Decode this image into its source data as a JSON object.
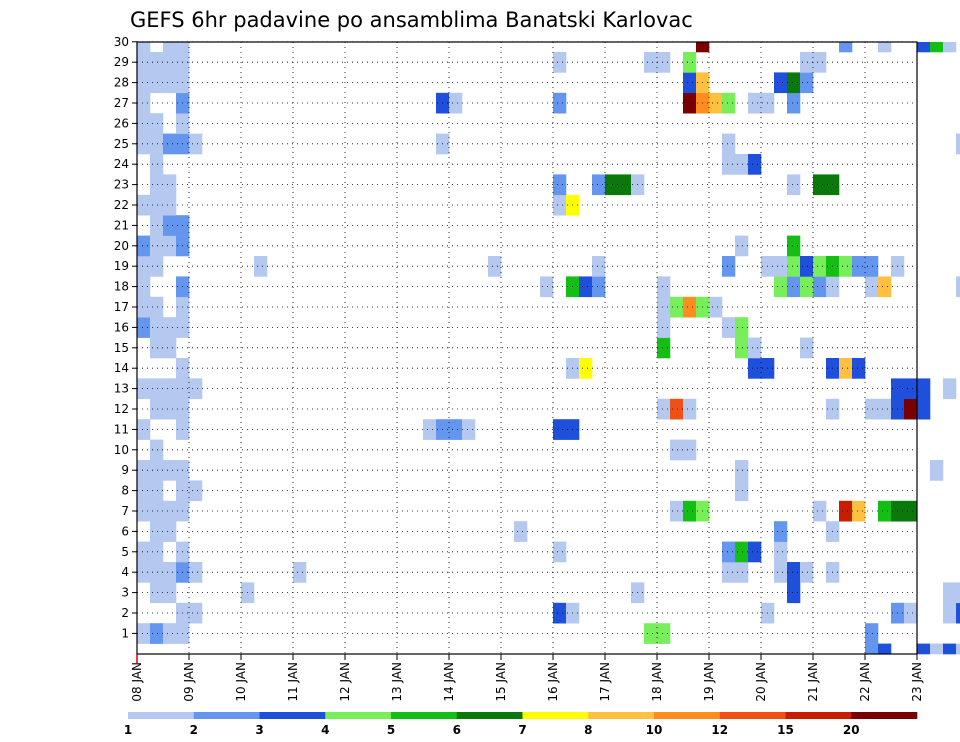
{
  "chart_data": {
    "type": "heatmap",
    "title": "GEFS 6hr padavine po ansamblima Banatski Karlovac",
    "xlabel": "",
    "ylabel": "",
    "x_tick_labels": [
      "08 JAN",
      "09 JAN",
      "10 JAN",
      "11 JAN",
      "12 JAN",
      "13 JAN",
      "14 JAN",
      "15 JAN",
      "16 JAN",
      "17 JAN",
      "18 JAN",
      "19 JAN",
      "20 JAN",
      "21 JAN",
      "22 JAN",
      "23 JAN"
    ],
    "y_tick_labels": [
      "1",
      "2",
      "3",
      "4",
      "5",
      "6",
      "7",
      "8",
      "9",
      "10",
      "11",
      "12",
      "13",
      "14",
      "15",
      "16",
      "17",
      "18",
      "19",
      "20",
      "21",
      "22",
      "23",
      "24",
      "25",
      "26",
      "27",
      "28",
      "29",
      "30"
    ],
    "x_range_days": [
      0,
      15
    ],
    "steps_per_day": 4,
    "members_range": [
      0,
      30
    ],
    "grid": true,
    "colorbar": {
      "placement": "bottom",
      "levels": [
        "1",
        "2",
        "3",
        "4",
        "5",
        "6",
        "7",
        "8",
        "10",
        "12",
        "15",
        "20"
      ],
      "colors": [
        "#b4c8f0",
        "#6496f0",
        "#1e50dc",
        "#78ee5a",
        "#14be14",
        "#0a780a",
        "#ffff00",
        "#ffc040",
        "#ff8c1e",
        "#f05014",
        "#c81e00",
        "#780000"
      ]
    },
    "cells": [
      [
        0,
        0,
        1
      ],
      [
        0,
        3,
        1
      ],
      [
        0,
        4,
        1
      ],
      [
        0,
        6,
        1
      ],
      [
        0,
        7,
        1
      ],
      [
        0,
        8,
        1
      ],
      [
        0,
        10,
        1
      ],
      [
        0,
        12,
        1
      ],
      [
        0,
        15,
        2
      ],
      [
        0,
        16,
        1
      ],
      [
        0,
        17,
        1
      ],
      [
        0,
        18,
        1
      ],
      [
        0,
        19,
        2
      ],
      [
        0,
        21,
        1
      ],
      [
        0,
        24,
        1
      ],
      [
        0,
        25,
        1
      ],
      [
        0,
        26,
        1
      ],
      [
        0,
        27,
        1
      ],
      [
        0,
        28,
        1
      ],
      [
        0,
        29,
        1
      ],
      [
        1,
        0,
        2
      ],
      [
        1,
        2,
        1
      ],
      [
        1,
        3,
        1
      ],
      [
        1,
        4,
        1
      ],
      [
        1,
        5,
        1
      ],
      [
        1,
        6,
        1
      ],
      [
        1,
        7,
        1
      ],
      [
        1,
        8,
        1
      ],
      [
        1,
        9,
        1
      ],
      [
        1,
        11,
        1
      ],
      [
        1,
        12,
        1
      ],
      [
        1,
        14,
        1
      ],
      [
        1,
        15,
        1
      ],
      [
        1,
        16,
        1
      ],
      [
        1,
        18,
        1
      ],
      [
        1,
        19,
        1
      ],
      [
        1,
        20,
        1
      ],
      [
        1,
        21,
        1
      ],
      [
        1,
        22,
        1
      ],
      [
        1,
        23,
        1
      ],
      [
        1,
        24,
        1
      ],
      [
        1,
        25,
        1
      ],
      [
        1,
        27,
        1
      ],
      [
        1,
        28,
        1
      ],
      [
        2,
        0,
        1
      ],
      [
        2,
        2,
        1
      ],
      [
        2,
        3,
        1
      ],
      [
        2,
        5,
        1
      ],
      [
        2,
        6,
        1
      ],
      [
        2,
        8,
        1
      ],
      [
        2,
        11,
        1
      ],
      [
        2,
        12,
        1
      ],
      [
        2,
        14,
        1
      ],
      [
        2,
        15,
        1
      ],
      [
        2,
        19,
        1
      ],
      [
        2,
        20,
        2
      ],
      [
        2,
        21,
        1
      ],
      [
        2,
        22,
        1
      ],
      [
        2,
        24,
        2
      ],
      [
        2,
        27,
        1
      ],
      [
        2,
        28,
        1
      ],
      [
        2,
        29,
        1
      ],
      [
        3,
        0,
        1
      ],
      [
        3,
        1,
        1
      ],
      [
        3,
        3,
        2
      ],
      [
        3,
        4,
        1
      ],
      [
        3,
        6,
        1
      ],
      [
        3,
        7,
        1
      ],
      [
        3,
        8,
        1
      ],
      [
        3,
        10,
        1
      ],
      [
        3,
        11,
        1
      ],
      [
        3,
        12,
        1
      ],
      [
        3,
        13,
        1
      ],
      [
        3,
        15,
        1
      ],
      [
        3,
        16,
        1
      ],
      [
        3,
        17,
        2
      ],
      [
        3,
        19,
        2
      ],
      [
        3,
        20,
        2
      ],
      [
        3,
        24,
        2
      ],
      [
        3,
        25,
        1
      ],
      [
        3,
        26,
        2
      ],
      [
        3,
        27,
        1
      ],
      [
        3,
        28,
        1
      ],
      [
        3,
        29,
        1
      ],
      [
        4,
        1,
        1
      ],
      [
        4,
        3,
        1
      ],
      [
        4,
        7,
        1
      ],
      [
        4,
        12,
        1
      ],
      [
        4,
        24,
        1
      ],
      [
        8,
        2,
        1
      ],
      [
        9,
        18,
        1
      ],
      [
        12,
        3,
        1
      ],
      [
        22,
        10,
        1
      ],
      [
        23,
        10,
        2
      ],
      [
        23,
        24,
        1
      ],
      [
        23,
        26,
        3
      ],
      [
        24,
        10,
        2
      ],
      [
        24,
        26,
        1
      ],
      [
        25,
        10,
        1
      ],
      [
        27,
        18,
        1
      ],
      [
        29,
        5,
        1
      ],
      [
        31,
        17,
        1
      ],
      [
        32,
        1,
        3
      ],
      [
        32,
        4,
        1
      ],
      [
        32,
        10,
        3
      ],
      [
        32,
        21,
        1
      ],
      [
        32,
        22,
        2
      ],
      [
        32,
        26,
        2
      ],
      [
        32,
        28,
        1
      ],
      [
        33,
        1,
        1
      ],
      [
        33,
        10,
        3
      ],
      [
        33,
        13,
        1
      ],
      [
        33,
        17,
        5
      ],
      [
        33,
        21,
        7
      ],
      [
        34,
        13,
        7
      ],
      [
        34,
        17,
        3
      ],
      [
        35,
        17,
        2
      ],
      [
        35,
        18,
        1
      ],
      [
        35,
        22,
        2
      ],
      [
        36,
        22,
        6
      ],
      [
        37,
        22,
        6
      ],
      [
        38,
        2,
        1
      ],
      [
        38,
        22,
        1
      ],
      [
        39,
        0,
        4
      ],
      [
        39,
        28,
        1
      ],
      [
        40,
        0,
        4
      ],
      [
        40,
        11,
        1
      ],
      [
        40,
        14,
        5
      ],
      [
        40,
        15,
        1
      ],
      [
        40,
        16,
        1
      ],
      [
        40,
        17,
        1
      ],
      [
        40,
        28,
        1
      ],
      [
        41,
        6,
        1
      ],
      [
        41,
        9,
        1
      ],
      [
        41,
        11,
        10
      ],
      [
        41,
        16,
        4
      ],
      [
        42,
        6,
        5
      ],
      [
        42,
        9,
        1
      ],
      [
        42,
        11,
        1
      ],
      [
        42,
        16,
        9
      ],
      [
        42,
        26,
        12
      ],
      [
        42,
        27,
        3
      ],
      [
        42,
        28,
        4
      ],
      [
        43,
        6,
        4
      ],
      [
        43,
        16,
        4
      ],
      [
        43,
        26,
        9
      ],
      [
        43,
        27,
        8
      ],
      [
        43,
        29,
        12
      ],
      [
        44,
        16,
        1
      ],
      [
        44,
        26,
        8
      ],
      [
        45,
        3,
        1
      ],
      [
        45,
        4,
        2
      ],
      [
        45,
        15,
        1
      ],
      [
        45,
        18,
        2
      ],
      [
        45,
        23,
        1
      ],
      [
        45,
        24,
        1
      ],
      [
        45,
        26,
        4
      ],
      [
        46,
        3,
        1
      ],
      [
        46,
        4,
        5
      ],
      [
        46,
        7,
        1
      ],
      [
        46,
        8,
        1
      ],
      [
        46,
        14,
        4
      ],
      [
        46,
        15,
        4
      ],
      [
        46,
        19,
        1
      ],
      [
        46,
        23,
        1
      ],
      [
        47,
        4,
        3
      ],
      [
        47,
        13,
        3
      ],
      [
        47,
        14,
        1
      ],
      [
        47,
        23,
        3
      ],
      [
        47,
        26,
        1
      ],
      [
        48,
        1,
        1
      ],
      [
        48,
        13,
        3
      ],
      [
        48,
        18,
        1
      ],
      [
        48,
        26,
        1
      ],
      [
        49,
        3,
        1
      ],
      [
        49,
        4,
        1
      ],
      [
        49,
        5,
        2
      ],
      [
        49,
        17,
        4
      ],
      [
        49,
        18,
        1
      ],
      [
        49,
        27,
        3
      ],
      [
        50,
        2,
        3
      ],
      [
        50,
        3,
        3
      ],
      [
        50,
        17,
        2
      ],
      [
        50,
        18,
        4
      ],
      [
        50,
        19,
        5
      ],
      [
        50,
        22,
        1
      ],
      [
        50,
        26,
        2
      ],
      [
        50,
        27,
        6
      ],
      [
        51,
        3,
        1
      ],
      [
        51,
        14,
        1
      ],
      [
        51,
        17,
        4
      ],
      [
        51,
        18,
        3
      ],
      [
        51,
        27,
        2
      ],
      [
        51,
        28,
        1
      ],
      [
        52,
        6,
        1
      ],
      [
        52,
        17,
        2
      ],
      [
        52,
        18,
        4
      ],
      [
        52,
        22,
        6
      ],
      [
        52,
        28,
        1
      ],
      [
        53,
        3,
        1
      ],
      [
        53,
        5,
        1
      ],
      [
        53,
        11,
        1
      ],
      [
        53,
        13,
        3
      ],
      [
        53,
        17,
        1
      ],
      [
        53,
        18,
        5
      ],
      [
        53,
        22,
        6
      ],
      [
        54,
        6,
        11
      ],
      [
        54,
        13,
        8
      ],
      [
        54,
        18,
        4
      ],
      [
        54,
        29,
        2
      ],
      [
        55,
        6,
        8
      ],
      [
        55,
        13,
        3
      ],
      [
        55,
        18,
        2
      ],
      [
        56,
        -1,
        2
      ],
      [
        56,
        0,
        2
      ],
      [
        56,
        11,
        1
      ],
      [
        56,
        17,
        1
      ],
      [
        56,
        18,
        2
      ],
      [
        57,
        -1,
        3
      ],
      [
        57,
        6,
        5
      ],
      [
        57,
        11,
        1
      ],
      [
        57,
        17,
        8
      ],
      [
        57,
        29,
        1
      ],
      [
        58,
        1,
        2
      ],
      [
        58,
        6,
        6
      ],
      [
        58,
        11,
        3
      ],
      [
        58,
        12,
        3
      ],
      [
        58,
        18,
        1
      ],
      [
        59,
        1,
        1
      ],
      [
        59,
        6,
        6
      ],
      [
        59,
        11,
        14
      ],
      [
        59,
        12,
        3
      ],
      [
        60,
        -1,
        3
      ],
      [
        60,
        11,
        3
      ],
      [
        60,
        12,
        3
      ],
      [
        60,
        29,
        3
      ],
      [
        61,
        -1,
        1
      ],
      [
        61,
        8,
        1
      ],
      [
        61,
        29,
        5
      ],
      [
        62,
        -1,
        3
      ],
      [
        62,
        1,
        1
      ],
      [
        62,
        2,
        1
      ],
      [
        62,
        12,
        1
      ],
      [
        62,
        29,
        1
      ],
      [
        63,
        -1,
        1
      ],
      [
        63,
        1,
        3
      ],
      [
        63,
        2,
        1
      ],
      [
        63,
        17,
        1
      ],
      [
        63,
        24,
        1
      ],
      [
        64,
        1,
        5
      ],
      [
        64,
        12,
        3
      ],
      [
        64,
        16,
        1
      ],
      [
        65,
        1,
        3
      ],
      [
        65,
        12,
        2
      ],
      [
        65,
        16,
        2
      ],
      [
        65,
        26,
        2
      ],
      [
        66,
        0,
        2
      ],
      [
        66,
        3,
        7
      ],
      [
        66,
        12,
        1
      ],
      [
        66,
        16,
        5
      ]
    ]
  }
}
